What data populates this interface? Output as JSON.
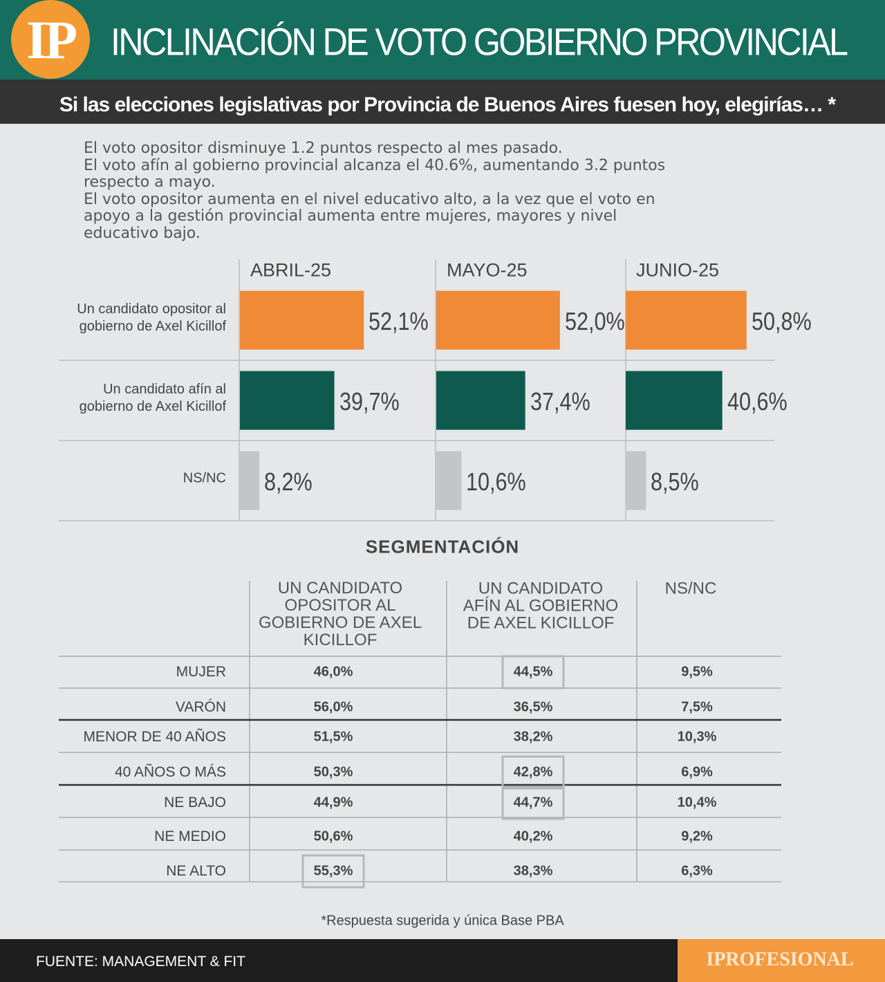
{
  "header": {
    "logo": "IP",
    "title": "INCLINACIÓN DE VOTO GOBIERNO PROVINCIAL",
    "subtitle": "Si las elecciones legislativas por Provincia de Buenos Aires fuesen hoy, elegirías… *"
  },
  "notes": "El voto opositor disminuye 1.2 puntos respecto al mes pasado.\nEl voto afín al gobierno provincial alcanza el 40.6%, aumentando 3.2 puntos\nrespecto a mayo.\nEl voto opositor aumenta en el nivel educativo alto, a la vez que el voto en\napoyo a la gestión provincial aumenta entre mujeres, mayores y nivel\neducativo bajo.",
  "chart_data": {
    "type": "bar",
    "orientation": "horizontal",
    "categories": [
      "Un candidato opositor al\ngobierno de Axel Kicillof",
      "Un candidato afín al\ngobierno de Axel Kicillof",
      "NS/NC"
    ],
    "colors": [
      "#f08a37",
      "#0e5a4f",
      "#c3c5c7"
    ],
    "series": [
      {
        "name": "ABRIL-25",
        "values": [
          52.1,
          39.7,
          8.2
        ],
        "value_labels": [
          "52,1%",
          "39,7%",
          "8,2%"
        ]
      },
      {
        "name": "MAYO-25",
        "values": [
          52.0,
          37.4,
          10.6
        ],
        "value_labels": [
          "52,0%",
          "37,4%",
          "10,6%"
        ]
      },
      {
        "name": "JUNIO-25",
        "values": [
          50.8,
          40.6,
          8.5
        ],
        "value_labels": [
          "50,8%",
          "40,6%",
          "8,5%"
        ]
      }
    ]
  },
  "segmentation": {
    "title": "SEGMENTACIÓN",
    "columns": [
      "UN CANDIDATO\nOPOSITOR AL\nGOBIERNO DE AXEL\nKICILLOF",
      "UN CANDIDATO\nAFÍN AL GOBIERNO\nDE AXEL KICILLOF",
      "NS/NC"
    ],
    "rows": [
      {
        "label": "MUJER",
        "values": [
          "46,0%",
          "44,5%",
          "9,5%"
        ]
      },
      {
        "label": "VARÓN",
        "values": [
          "56,0%",
          "36,5%",
          "7,5%"
        ]
      },
      {
        "label": "MENOR DE 40 AÑOS",
        "values": [
          "51,5%",
          "38,2%",
          "10,3%"
        ]
      },
      {
        "label": "40 AÑOS O MÁS",
        "values": [
          "50,3%",
          "42,8%",
          "6,9%"
        ]
      },
      {
        "label": "NE BAJO",
        "values": [
          "44,9%",
          "44,7%",
          "10,4%"
        ]
      },
      {
        "label": "NE MEDIO",
        "values": [
          "50,6%",
          "40,2%",
          "9,2%"
        ]
      },
      {
        "label": "NE ALTO",
        "values": [
          "55,3%",
          "38,3%",
          "6,3%"
        ]
      }
    ],
    "highlighted": [
      [
        0,
        1
      ],
      [
        3,
        1
      ],
      [
        4,
        1
      ],
      [
        6,
        0
      ]
    ]
  },
  "footnote": "*Respuesta sugerida y única Base PBA",
  "footer": {
    "source": "FUENTE: MANAGEMENT & FIT",
    "brand": "IPROFESIONAL"
  }
}
